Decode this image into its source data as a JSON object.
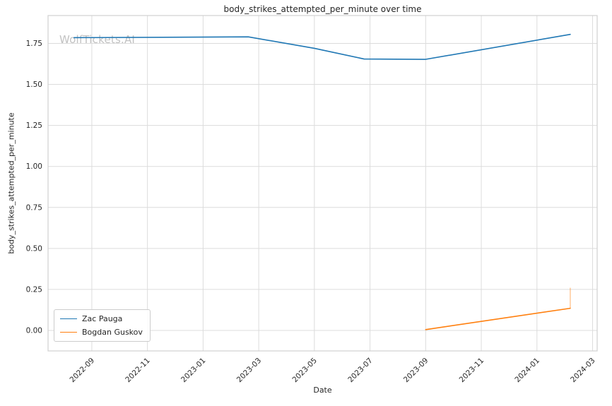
{
  "watermark": {
    "text": "WolfTickets.AI",
    "color": "#c2c2c2"
  },
  "chart_data": {
    "type": "line",
    "title": "body_strikes_attempted_per_minute over time",
    "xlabel": "Date",
    "ylabel": "body_strikes_attempted_per_minute",
    "grid": true,
    "legend_position": "lower left",
    "x_tick_labels": [
      "2022-09",
      "2022-11",
      "2023-01",
      "2023-03",
      "2023-05",
      "2023-07",
      "2023-09",
      "2023-11",
      "2024-01",
      "2024-03"
    ],
    "y_ticks": [
      0.0,
      0.25,
      0.5,
      0.75,
      1.0,
      1.25,
      1.5,
      1.75
    ],
    "y_tick_labels": [
      "0.00",
      "0.25",
      "0.50",
      "0.75",
      "1.00",
      "1.25",
      "1.50",
      "1.75"
    ],
    "xlim": [
      "2022-07-14",
      "2024-03-06"
    ],
    "ylim": [
      -0.125,
      1.92
    ],
    "grid_color": "#dcdcdc",
    "spine_color": "#d0d0d0",
    "series": [
      {
        "name": "Zac Pauga",
        "color": "#1f77b4",
        "points": [
          [
            "2022-08-12",
            1.785
          ],
          [
            "2023-02-20",
            1.79
          ],
          [
            "2023-05-01",
            1.72
          ],
          [
            "2023-06-25",
            1.655
          ],
          [
            "2023-09-01",
            1.653
          ],
          [
            "2024-02-07",
            1.805
          ]
        ]
      },
      {
        "name": "Bogdan Guskov",
        "color": "#ff7f0e",
        "points": [
          [
            "2023-09-01",
            0.005
          ],
          [
            "2024-02-07",
            0.135
          ]
        ]
      }
    ],
    "annotations": [
      {
        "type": "vline-segment",
        "x": "2024-02-07",
        "y_from": 0.135,
        "y_to": 0.26,
        "color": "#ff7f0e",
        "opacity": 0.45
      }
    ]
  }
}
